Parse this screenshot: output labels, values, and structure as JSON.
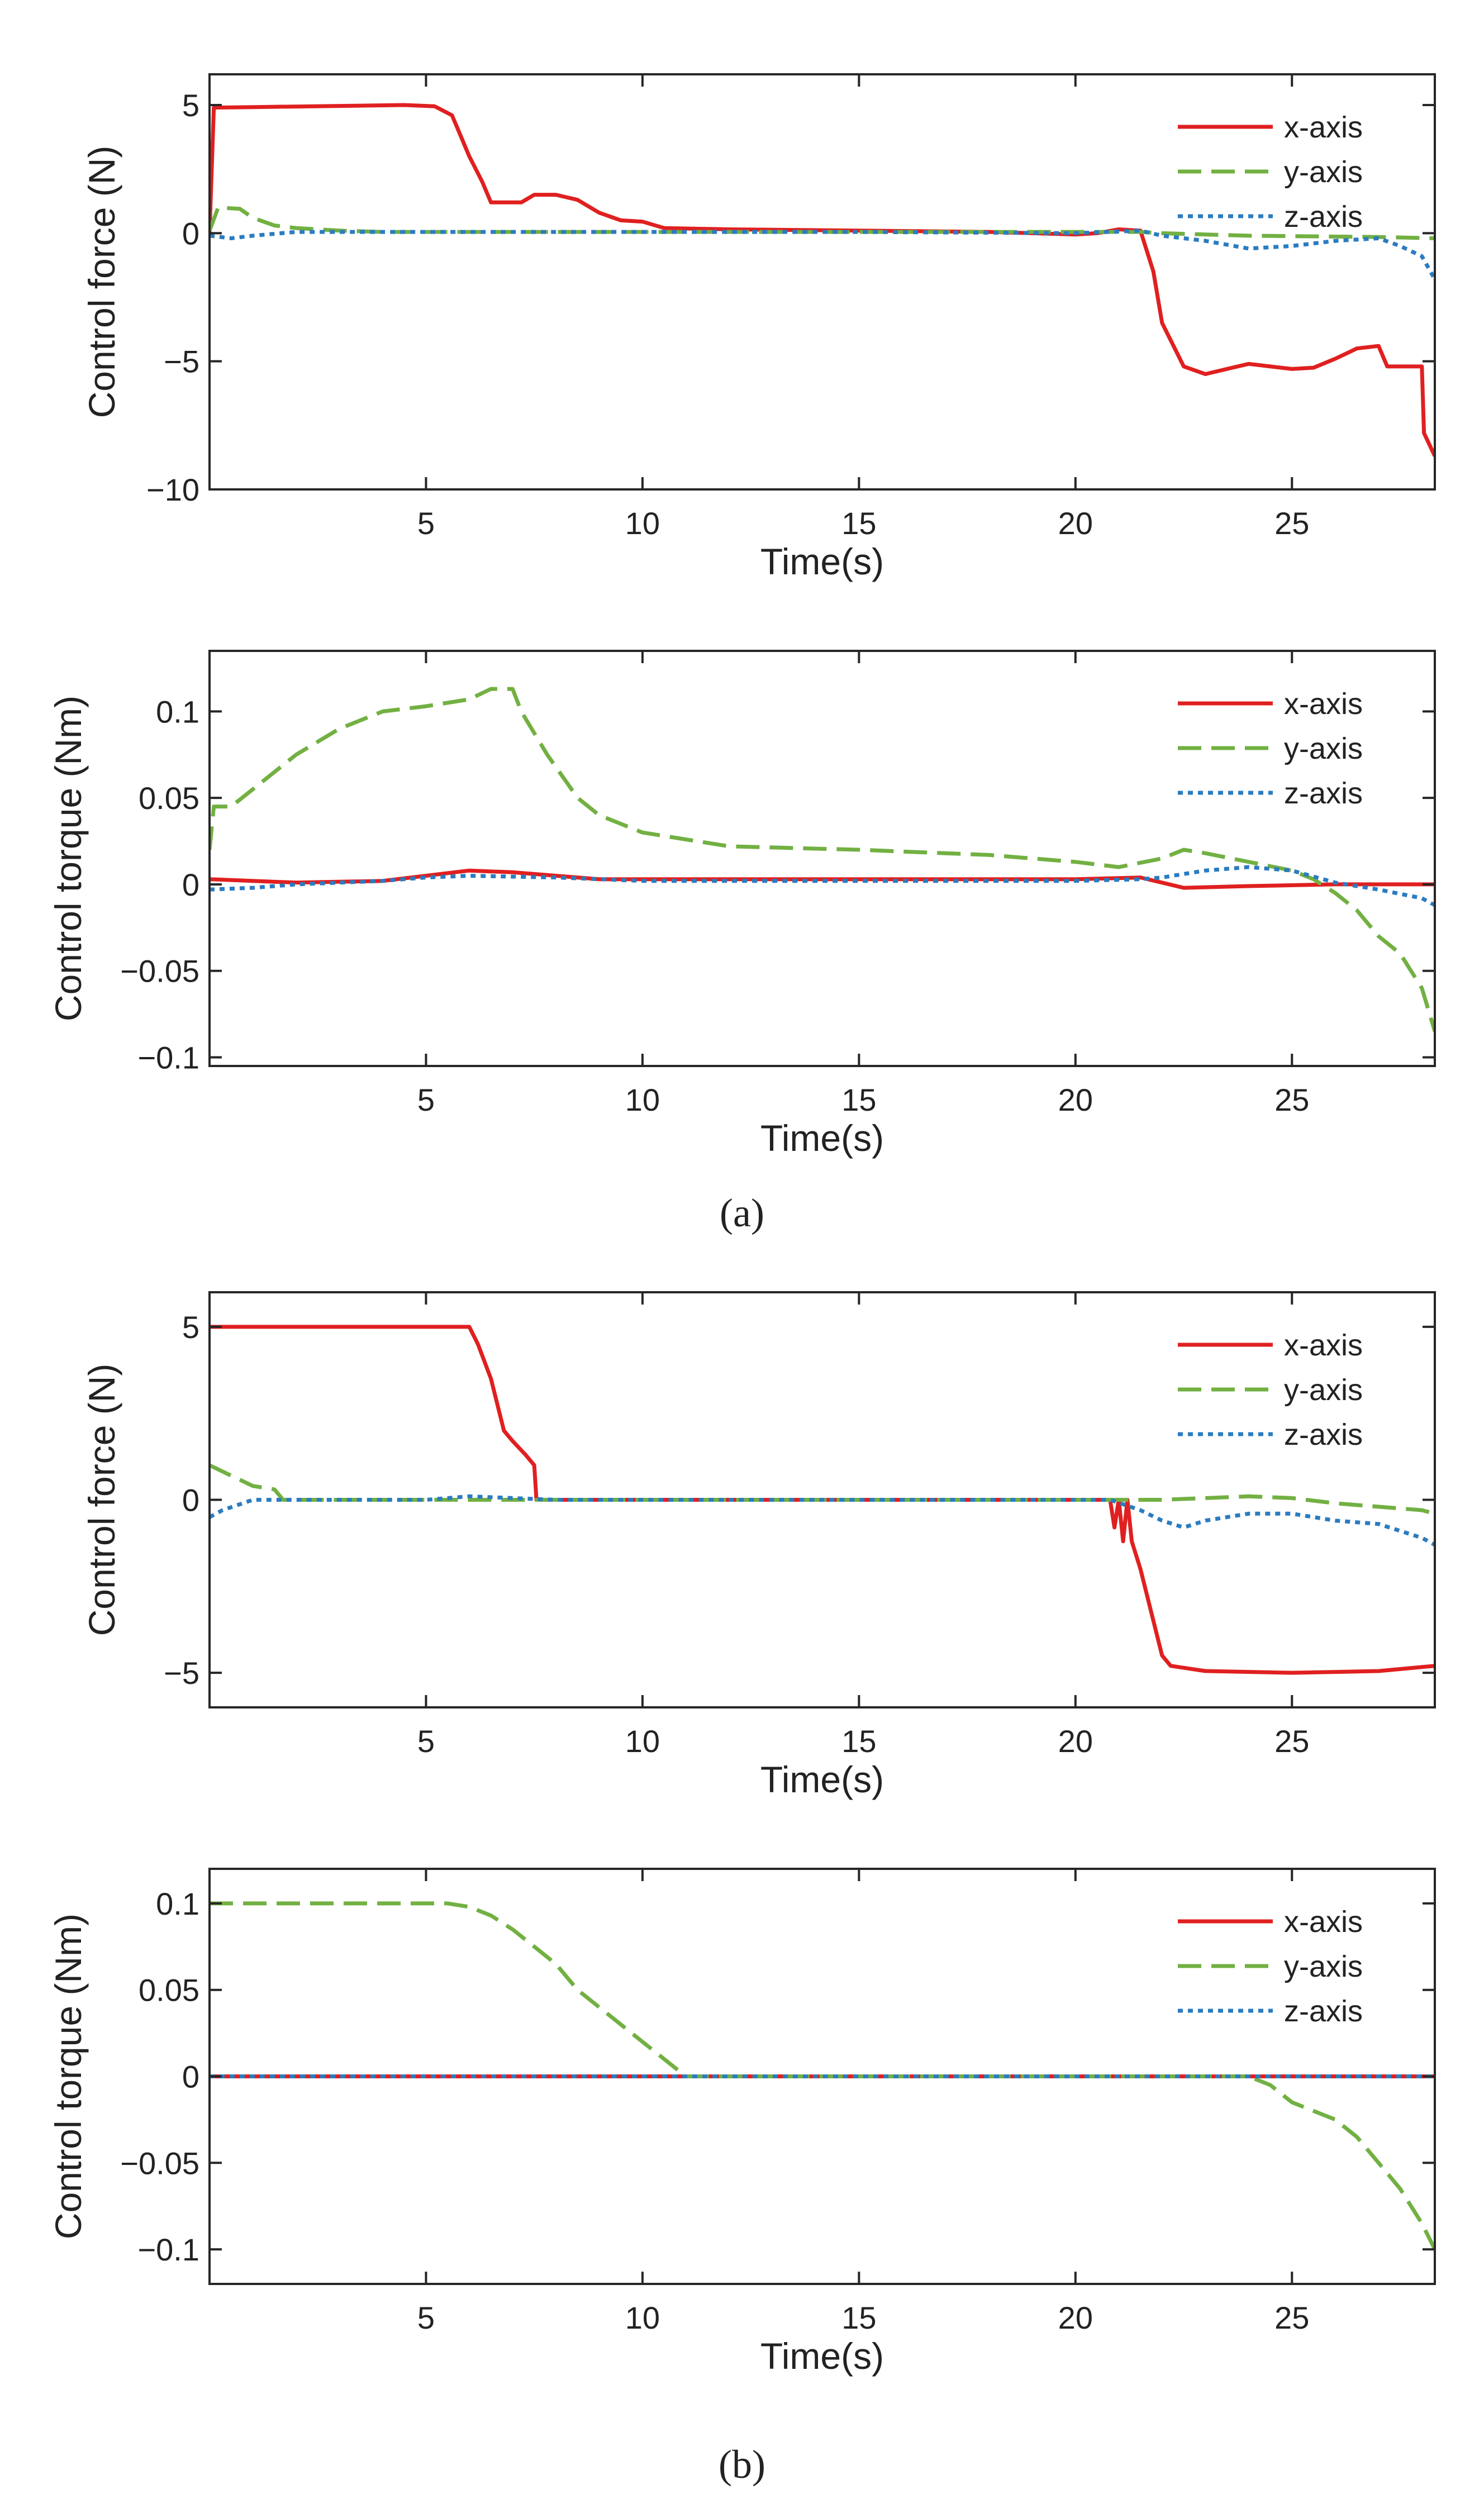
{
  "captions": [
    "(a)",
    "(b)"
  ],
  "chart_data": [
    {
      "type": "line",
      "panel": "a",
      "xlabel": "Time(s)",
      "ylabel": "Control force (N)",
      "xlim": [
        0,
        28.3
      ],
      "ylim": [
        -10,
        6.2
      ],
      "xticks": [
        5,
        10,
        15,
        20,
        25
      ],
      "yticks": [
        5,
        0,
        -5,
        -10
      ],
      "ytick_labels": [
        "5",
        "0",
        "−5",
        "−10"
      ],
      "legend_position": "top-right",
      "grid": false,
      "series": [
        {
          "name": "x-axis",
          "color": "#e02020",
          "style": "solid",
          "points": [
            [
              0,
              0
            ],
            [
              0.1,
              4.9
            ],
            [
              1,
              4.92
            ],
            [
              4.5,
              5
            ],
            [
              5.2,
              4.95
            ],
            [
              5.6,
              4.6
            ],
            [
              6,
              3
            ],
            [
              6.3,
              2
            ],
            [
              6.5,
              1.2
            ],
            [
              7.2,
              1.2
            ],
            [
              7.5,
              1.5
            ],
            [
              8,
              1.5
            ],
            [
              8.5,
              1.3
            ],
            [
              9,
              0.8
            ],
            [
              9.5,
              0.5
            ],
            [
              10,
              0.45
            ],
            [
              10.5,
              0.2
            ],
            [
              12,
              0.15
            ],
            [
              15,
              0.1
            ],
            [
              18,
              0.05
            ],
            [
              20,
              -0.05
            ],
            [
              20.5,
              0
            ],
            [
              21,
              0.15
            ],
            [
              21.5,
              0.1
            ],
            [
              21.8,
              -1.5
            ],
            [
              22,
              -3.5
            ],
            [
              22.5,
              -5.2
            ],
            [
              23,
              -5.5
            ],
            [
              23.5,
              -5.3
            ],
            [
              24,
              -5.1
            ],
            [
              24.5,
              -5.2
            ],
            [
              25,
              -5.3
            ],
            [
              25.5,
              -5.25
            ],
            [
              26,
              -4.9
            ],
            [
              26.5,
              -4.5
            ],
            [
              27,
              -4.4
            ],
            [
              27.2,
              -5.2
            ],
            [
              28,
              -5.2
            ],
            [
              28.05,
              -7.8
            ],
            [
              28.3,
              -8.7
            ]
          ]
        },
        {
          "name": "y-axis",
          "color": "#72b042",
          "style": "dashed",
          "points": [
            [
              0,
              0.1
            ],
            [
              0.2,
              1
            ],
            [
              0.7,
              0.95
            ],
            [
              1,
              0.6
            ],
            [
              1.5,
              0.3
            ],
            [
              2,
              0.2
            ],
            [
              3,
              0.1
            ],
            [
              4,
              0.05
            ],
            [
              20,
              0.05
            ],
            [
              21.5,
              0.05
            ],
            [
              22,
              0
            ],
            [
              24,
              -0.1
            ],
            [
              27,
              -0.15
            ],
            [
              28.3,
              -0.2
            ]
          ]
        },
        {
          "name": "z-axis",
          "color": "#2b7cc0",
          "style": "dotted",
          "points": [
            [
              0,
              -0.1
            ],
            [
              0.5,
              -0.2
            ],
            [
              1,
              -0.1
            ],
            [
              2,
              0.05
            ],
            [
              5,
              0.05
            ],
            [
              10,
              0.05
            ],
            [
              15,
              0.05
            ],
            [
              20,
              0
            ],
            [
              21.5,
              0.1
            ],
            [
              22,
              -0.1
            ],
            [
              23,
              -0.3
            ],
            [
              24,
              -0.6
            ],
            [
              25,
              -0.5
            ],
            [
              26,
              -0.3
            ],
            [
              27,
              -0.2
            ],
            [
              27.5,
              -0.5
            ],
            [
              28,
              -0.9
            ],
            [
              28.3,
              -1.8
            ]
          ]
        }
      ]
    },
    {
      "type": "line",
      "panel": "a",
      "xlabel": "Time(s)",
      "ylabel": "Control torque (Nm)",
      "xlim": [
        0,
        28.3
      ],
      "ylim": [
        -0.105,
        0.135
      ],
      "xticks": [
        5,
        10,
        15,
        20,
        25
      ],
      "yticks": [
        0.1,
        0.05,
        0,
        -0.05,
        -0.1
      ],
      "ytick_labels": [
        "0.1",
        "0.05",
        "0",
        "−0.05",
        "−0.1"
      ],
      "legend_position": "top-right",
      "grid": false,
      "series": [
        {
          "name": "x-axis",
          "color": "#e02020",
          "style": "solid",
          "points": [
            [
              0,
              0.003
            ],
            [
              1,
              0.002
            ],
            [
              2,
              0.001
            ],
            [
              4,
              0.002
            ],
            [
              5,
              0.005
            ],
            [
              6,
              0.008
            ],
            [
              7,
              0.007
            ],
            [
              8,
              0.005
            ],
            [
              9,
              0.003
            ],
            [
              10,
              0.003
            ],
            [
              15,
              0.003
            ],
            [
              20,
              0.003
            ],
            [
              21.5,
              0.004
            ],
            [
              22,
              0.001
            ],
            [
              22.5,
              -0.002
            ],
            [
              24,
              -0.001
            ],
            [
              26,
              0
            ],
            [
              28.3,
              0
            ]
          ]
        },
        {
          "name": "y-axis",
          "color": "#72b042",
          "style": "dashed",
          "points": [
            [
              0,
              0.02
            ],
            [
              0.1,
              0.045
            ],
            [
              0.5,
              0.045
            ],
            [
              1,
              0.055
            ],
            [
              2,
              0.075
            ],
            [
              3,
              0.09
            ],
            [
              4,
              0.1
            ],
            [
              5,
              0.103
            ],
            [
              6,
              0.107
            ],
            [
              6.5,
              0.113
            ],
            [
              7,
              0.113
            ],
            [
              7.2,
              0.1
            ],
            [
              7.8,
              0.075
            ],
            [
              8.5,
              0.05
            ],
            [
              9,
              0.04
            ],
            [
              10,
              0.03
            ],
            [
              12,
              0.022
            ],
            [
              15,
              0.02
            ],
            [
              18,
              0.017
            ],
            [
              20,
              0.013
            ],
            [
              21,
              0.01
            ],
            [
              22,
              0.015
            ],
            [
              22.5,
              0.02
            ],
            [
              23,
              0.018
            ],
            [
              24,
              0.013
            ],
            [
              25,
              0.008
            ],
            [
              25.5,
              0.003
            ],
            [
              26,
              -0.005
            ],
            [
              26.5,
              -0.015
            ],
            [
              27,
              -0.03
            ],
            [
              27.5,
              -0.04
            ],
            [
              28,
              -0.06
            ],
            [
              28.3,
              -0.085
            ]
          ]
        },
        {
          "name": "z-axis",
          "color": "#2b7cc0",
          "style": "dotted",
          "points": [
            [
              0,
              -0.003
            ],
            [
              1,
              -0.002
            ],
            [
              2,
              0
            ],
            [
              4,
              0.002
            ],
            [
              5,
              0.004
            ],
            [
              6,
              0.005
            ],
            [
              8,
              0.004
            ],
            [
              10,
              0.002
            ],
            [
              15,
              0.002
            ],
            [
              20,
              0.002
            ],
            [
              21.5,
              0.003
            ],
            [
              22,
              0.004
            ],
            [
              23,
              0.008
            ],
            [
              24,
              0.01
            ],
            [
              25,
              0.008
            ],
            [
              26,
              0.001
            ],
            [
              27,
              -0.003
            ],
            [
              28,
              -0.008
            ],
            [
              28.3,
              -0.012
            ]
          ]
        }
      ]
    },
    {
      "type": "line",
      "panel": "b",
      "xlabel": "Time(s)",
      "ylabel": "Control force (N)",
      "xlim": [
        0,
        28.3
      ],
      "ylim": [
        -6,
        6
      ],
      "xticks": [
        5,
        10,
        15,
        20,
        25
      ],
      "yticks": [
        5,
        0,
        -5
      ],
      "ytick_labels": [
        "5",
        "0",
        "−5"
      ],
      "legend_position": "top-right",
      "grid": false,
      "series": [
        {
          "name": "x-axis",
          "color": "#e02020",
          "style": "solid",
          "points": [
            [
              0,
              5
            ],
            [
              6,
              5
            ],
            [
              6.2,
              4.5
            ],
            [
              6.5,
              3.5
            ],
            [
              6.8,
              2
            ],
            [
              7,
              1.7
            ],
            [
              7.3,
              1.3
            ],
            [
              7.5,
              1
            ],
            [
              7.55,
              0
            ],
            [
              20.8,
              0
            ],
            [
              20.9,
              -0.8
            ],
            [
              21,
              0
            ],
            [
              21.1,
              -1.2
            ],
            [
              21.2,
              0
            ],
            [
              21.3,
              -1.2
            ],
            [
              21.5,
              -2
            ],
            [
              21.8,
              -3.5
            ],
            [
              22,
              -4.5
            ],
            [
              22.2,
              -4.8
            ],
            [
              23,
              -4.95
            ],
            [
              25,
              -5
            ],
            [
              27,
              -4.95
            ],
            [
              28.3,
              -4.8
            ]
          ]
        },
        {
          "name": "y-axis",
          "color": "#72b042",
          "style": "dashed",
          "points": [
            [
              0,
              1
            ],
            [
              0.5,
              0.7
            ],
            [
              1,
              0.4
            ],
            [
              1.5,
              0.3
            ],
            [
              1.7,
              0
            ],
            [
              20.8,
              0
            ],
            [
              22,
              0
            ],
            [
              24,
              0.1
            ],
            [
              25,
              0.05
            ],
            [
              26,
              -0.1
            ],
            [
              27,
              -0.2
            ],
            [
              28,
              -0.3
            ],
            [
              28.3,
              -0.4
            ]
          ]
        },
        {
          "name": "z-axis",
          "color": "#2b7cc0",
          "style": "dotted",
          "points": [
            [
              0,
              -0.5
            ],
            [
              0.3,
              -0.3
            ],
            [
              1,
              0
            ],
            [
              5,
              0
            ],
            [
              6,
              0.1
            ],
            [
              8,
              0
            ],
            [
              20.8,
              0
            ],
            [
              21.5,
              -0.3
            ],
            [
              22,
              -0.6
            ],
            [
              22.5,
              -0.8
            ],
            [
              23,
              -0.6
            ],
            [
              24,
              -0.4
            ],
            [
              25,
              -0.4
            ],
            [
              26,
              -0.6
            ],
            [
              27,
              -0.7
            ],
            [
              28,
              -1.1
            ],
            [
              28.3,
              -1.3
            ]
          ]
        }
      ]
    },
    {
      "type": "line",
      "panel": "b",
      "xlabel": "Time(s)",
      "ylabel": "Control torque (Nm)",
      "xlim": [
        0,
        28.3
      ],
      "ylim": [
        -0.12,
        0.12
      ],
      "xticks": [
        5,
        10,
        15,
        20,
        25
      ],
      "yticks": [
        0.1,
        0.05,
        0,
        -0.05,
        -0.1
      ],
      "ytick_labels": [
        "0.1",
        "0.05",
        "0",
        "−0.05",
        "−0.1"
      ],
      "legend_position": "top-right",
      "grid": false,
      "series": [
        {
          "name": "x-axis",
          "color": "#e02020",
          "style": "solid",
          "points": [
            [
              0,
              0
            ],
            [
              28.3,
              0
            ]
          ]
        },
        {
          "name": "y-axis",
          "color": "#72b042",
          "style": "dashed",
          "points": [
            [
              0,
              0.1
            ],
            [
              3,
              0.1
            ],
            [
              5,
              0.1
            ],
            [
              5.5,
              0.1
            ],
            [
              6,
              0.098
            ],
            [
              6.5,
              0.093
            ],
            [
              7,
              0.085
            ],
            [
              7.5,
              0.075
            ],
            [
              8,
              0.065
            ],
            [
              8.5,
              0.05
            ],
            [
              9,
              0.04
            ],
            [
              9.5,
              0.03
            ],
            [
              10,
              0.02
            ],
            [
              10.5,
              0.01
            ],
            [
              11,
              0
            ],
            [
              12.5,
              0
            ],
            [
              24,
              0
            ],
            [
              24.5,
              -0.005
            ],
            [
              25,
              -0.015
            ],
            [
              25.5,
              -0.02
            ],
            [
              26,
              -0.025
            ],
            [
              26.5,
              -0.035
            ],
            [
              27,
              -0.05
            ],
            [
              27.5,
              -0.065
            ],
            [
              28,
              -0.085
            ],
            [
              28.3,
              -0.1
            ]
          ]
        },
        {
          "name": "z-axis",
          "color": "#2b7cc0",
          "style": "dotted",
          "points": [
            [
              0,
              0
            ],
            [
              28.3,
              0
            ]
          ]
        }
      ]
    }
  ]
}
